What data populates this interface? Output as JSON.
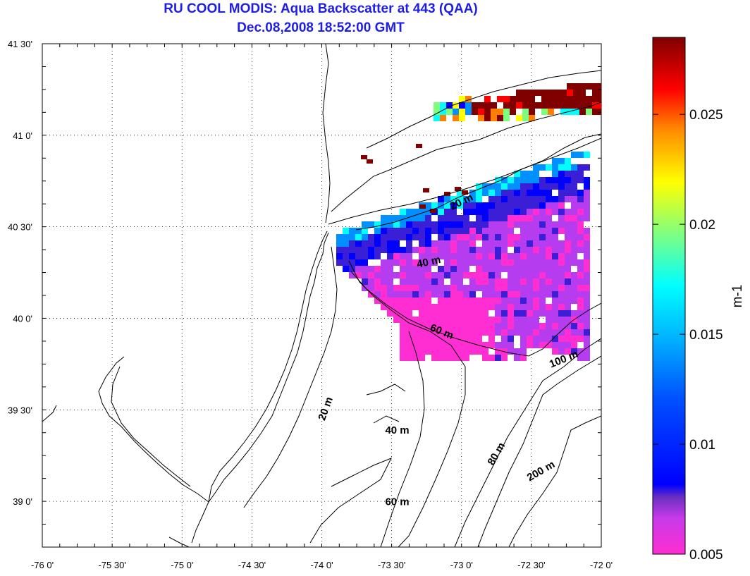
{
  "title": "RU COOL MODIS: Aqua Backscatter at 443 (QAA)",
  "subtitle": "Dec.08,2008 18:52:00 GMT",
  "map": {
    "lon_range": [
      -76,
      -72
    ],
    "lat_range": [
      38.75,
      41.5
    ],
    "x_ticks": [
      {
        "value": -76,
        "label": "-76 0'"
      },
      {
        "value": -75.5,
        "label": "-75 30'"
      },
      {
        "value": -75,
        "label": "-75 0'"
      },
      {
        "value": -74.5,
        "label": "-74 30'"
      },
      {
        "value": -74,
        "label": "-74 0'"
      },
      {
        "value": -73.5,
        "label": "-73 30'"
      },
      {
        "value": -73,
        "label": "-73 0'"
      },
      {
        "value": -72.5,
        "label": "-72 30'"
      },
      {
        "value": -72,
        "label": "-72 0'"
      }
    ],
    "y_ticks": [
      {
        "value": 41.5,
        "label": "41 30'"
      },
      {
        "value": 41,
        "label": "41 0'"
      },
      {
        "value": 40.5,
        "label": "40 30'"
      },
      {
        "value": 40,
        "label": "40 0'"
      },
      {
        "value": 39.5,
        "label": "39 30'"
      },
      {
        "value": 39,
        "label": "39 0'"
      }
    ],
    "grid": "dotted",
    "isobath_labels": [
      {
        "text": "20 m",
        "lon": -72.99,
        "lat": 40.62,
        "rotate": -26
      },
      {
        "text": "40 m",
        "lon": -73.23,
        "lat": 40.29,
        "rotate": -12
      },
      {
        "text": "60 m",
        "lon": -73.15,
        "lat": 39.91,
        "rotate": 22
      },
      {
        "text": "100 m",
        "lon": -72.26,
        "lat": 39.76,
        "rotate": -22
      },
      {
        "text": "20 m",
        "lon": -73.95,
        "lat": 39.5,
        "rotate": -70
      },
      {
        "text": "40 m",
        "lon": -73.46,
        "lat": 39.37,
        "rotate": 0
      },
      {
        "text": "80 m",
        "lon": -72.73,
        "lat": 39.25,
        "rotate": -60
      },
      {
        "text": "200 m",
        "lon": -72.42,
        "lat": 39.15,
        "rotate": -30
      },
      {
        "text": "60 m",
        "lon": -73.46,
        "lat": 38.98,
        "rotate": 0
      }
    ]
  },
  "colorbar": {
    "min": 0.005,
    "max": 0.0285,
    "ticks": [
      "0.025",
      "0.02",
      "0.015",
      "0.01",
      "0.005"
    ],
    "tick_values": [
      0.025,
      0.02,
      0.015,
      0.01,
      0.005
    ],
    "label": "m-1",
    "colormap": [
      "#ff2ed2",
      "#b63cf0",
      "#3a1fd6",
      "#0000ff",
      "#0090ff",
      "#00ffff",
      "#7dff7d",
      "#ffff00",
      "#ff8000",
      "#ff0000",
      "#800000"
    ]
  }
}
